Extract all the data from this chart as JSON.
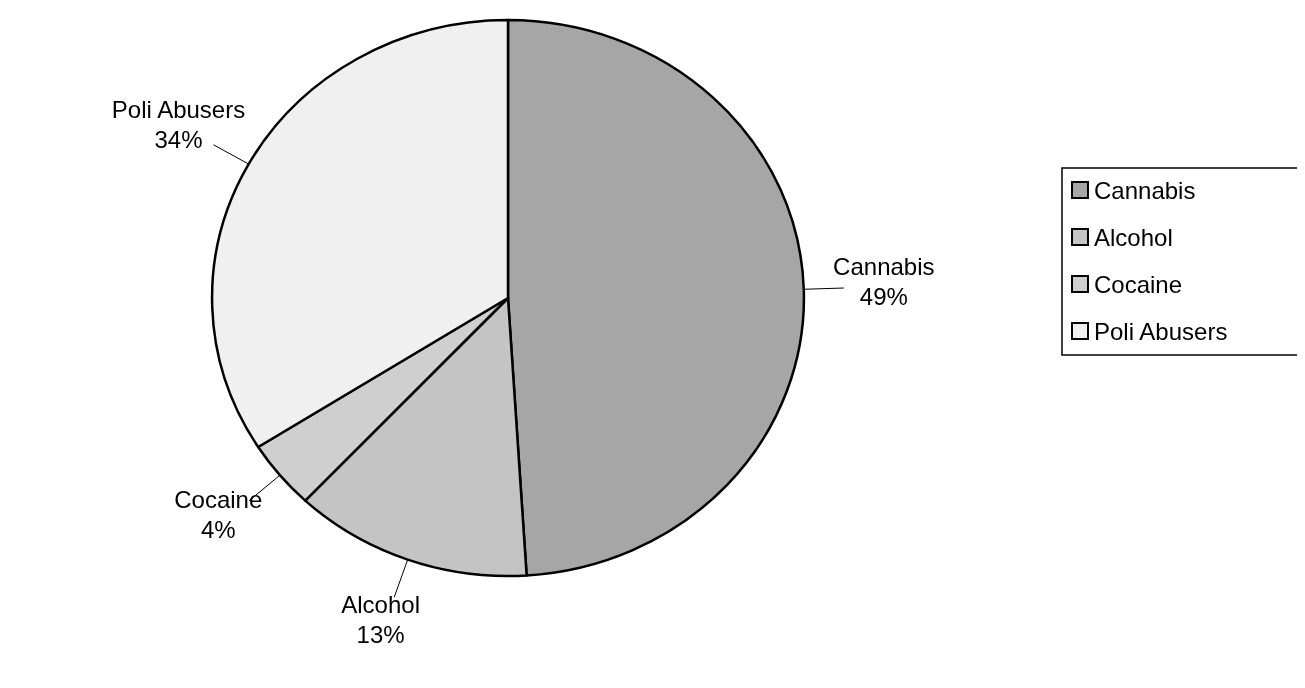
{
  "chart_data": {
    "type": "pie",
    "categories": [
      "Cannabis",
      "Alcohol",
      "Cocaine",
      "Poli Abusers"
    ],
    "values": [
      49,
      13,
      4,
      34
    ],
    "colors": [
      "#a6a6a6",
      "#c4c4c4",
      "#cfcfcf",
      "#f0f0f0"
    ],
    "value_labels": [
      "49%",
      "13%",
      "4%",
      "34%"
    ],
    "legend": "right"
  }
}
